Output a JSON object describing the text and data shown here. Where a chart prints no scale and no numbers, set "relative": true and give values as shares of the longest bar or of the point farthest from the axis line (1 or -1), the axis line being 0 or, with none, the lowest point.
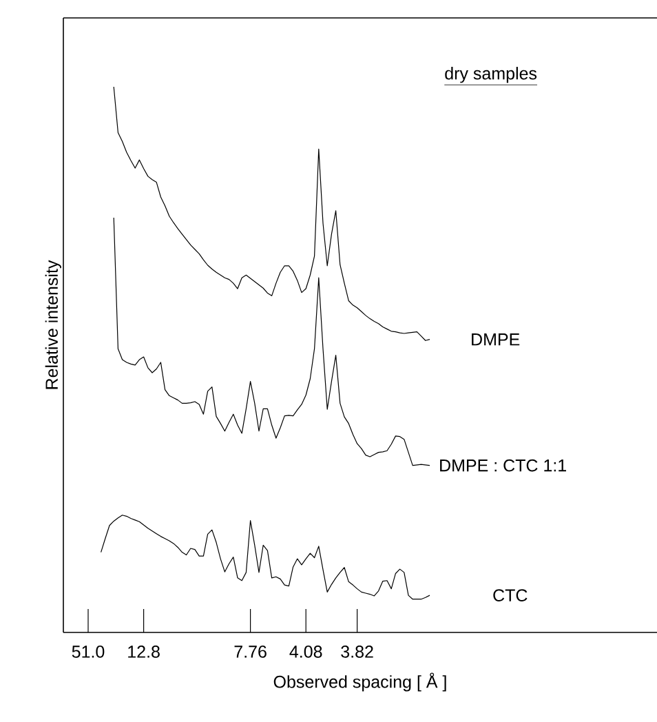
{
  "chart_data": {
    "type": "line",
    "relative": true,
    "xlabel": "Observed spacing [ Å ]",
    "ylabel": "Relative intensity",
    "categories": [
      "51.0",
      null,
      null,
      null,
      null,
      null,
      null,
      null,
      null,
      null,
      null,
      null,
      null,
      "12.8",
      null,
      null,
      null,
      null,
      null,
      null,
      null,
      null,
      null,
      null,
      null,
      null,
      null,
      null,
      null,
      null,
      null,
      null,
      null,
      null,
      null,
      null,
      null,
      null,
      "7.76",
      null,
      null,
      null,
      null,
      null,
      null,
      null,
      null,
      null,
      null,
      null,
      null,
      "4.08",
      null,
      null,
      null,
      null,
      null,
      null,
      null,
      null,
      null,
      null,
      null,
      "3.82",
      null,
      null,
      null,
      null,
      null,
      null,
      null,
      null,
      null,
      null,
      null,
      null,
      null,
      null,
      null,
      null,
      null
    ],
    "tick_labels": "x",
    "grid": false,
    "legend": false,
    "marker": "none",
    "line_style": "solid",
    "annotations": [
      "dry samples"
    ],
    "series": [
      {
        "name": "DMPE",
        "color": "#000000",
        "values": [
          null,
          null,
          null,
          null,
          null,
          null,
          1.0,
          0.916,
          0.9,
          0.88,
          0.865,
          0.851,
          0.866,
          0.85,
          0.836,
          0.83,
          0.825,
          0.798,
          0.782,
          0.763,
          0.751,
          0.74,
          0.73,
          0.72,
          0.71,
          0.702,
          0.694,
          0.683,
          0.673,
          0.666,
          0.66,
          0.655,
          0.65,
          0.647,
          0.64,
          0.63,
          0.65,
          0.655,
          0.649,
          0.643,
          0.637,
          0.631,
          0.622,
          0.617,
          0.64,
          0.66,
          0.672,
          0.672,
          0.662,
          0.645,
          0.623,
          0.63,
          0.655,
          0.69,
          0.886,
          0.75,
          0.672,
          0.73,
          0.773,
          0.674,
          0.64,
          0.608,
          0.6,
          0.595,
          0.588,
          0.581,
          0.575,
          0.57,
          0.566,
          0.56,
          0.556,
          0.552,
          0.551,
          0.549,
          0.548,
          0.549,
          0.55,
          0.551,
          0.543,
          0.535,
          0.537
        ]
      },
      {
        "name": "DMPE : CTC 1:1",
        "color": "#000000",
        "values": [
          null,
          null,
          null,
          null,
          null,
          null,
          0.76,
          0.52,
          0.5,
          0.495,
          0.492,
          0.49,
          0.5,
          0.505,
          0.485,
          0.476,
          0.483,
          0.495,
          0.445,
          0.434,
          0.43,
          0.426,
          0.42,
          0.42,
          0.421,
          0.423,
          0.418,
          0.4,
          0.442,
          0.45,
          0.396,
          0.383,
          0.369,
          0.385,
          0.4,
          0.38,
          0.365,
          0.41,
          0.46,
          0.42,
          0.369,
          0.41,
          0.41,
          0.38,
          0.356,
          0.375,
          0.397,
          0.398,
          0.397,
          0.408,
          0.418,
          0.435,
          0.465,
          0.52,
          0.65,
          0.52,
          0.409,
          0.46,
          0.508,
          0.42,
          0.395,
          0.383,
          0.363,
          0.346,
          0.337,
          0.325,
          0.322,
          0.326,
          0.33,
          0.331,
          0.333,
          0.345,
          0.36,
          0.359,
          0.354,
          0.33,
          0.306,
          0.307,
          0.308,
          0.307,
          0.306
        ]
      },
      {
        "name": "CTC",
        "color": "#000000",
        "values": [
          null,
          null,
          null,
          0.147,
          0.172,
          0.196,
          0.204,
          0.21,
          0.215,
          0.213,
          0.209,
          0.206,
          0.203,
          0.197,
          0.191,
          0.186,
          0.181,
          0.176,
          0.172,
          0.168,
          0.163,
          0.156,
          0.147,
          0.142,
          0.154,
          0.152,
          0.14,
          0.14,
          0.18,
          0.188,
          0.165,
          0.135,
          0.111,
          0.126,
          0.138,
          0.1,
          0.095,
          0.11,
          0.205,
          0.16,
          0.11,
          0.16,
          0.15,
          0.1,
          0.102,
          0.098,
          0.087,
          0.085,
          0.12,
          0.135,
          0.124,
          0.135,
          0.145,
          0.137,
          0.158,
          0.115,
          0.074,
          0.088,
          0.1,
          0.11,
          0.119,
          0.093,
          0.087,
          0.08,
          0.074,
          0.072,
          0.07,
          0.067,
          0.076,
          0.094,
          0.095,
          0.08,
          0.108,
          0.116,
          0.11,
          0.068,
          0.061,
          0.061,
          0.061,
          0.064,
          0.068
        ]
      }
    ]
  }
}
